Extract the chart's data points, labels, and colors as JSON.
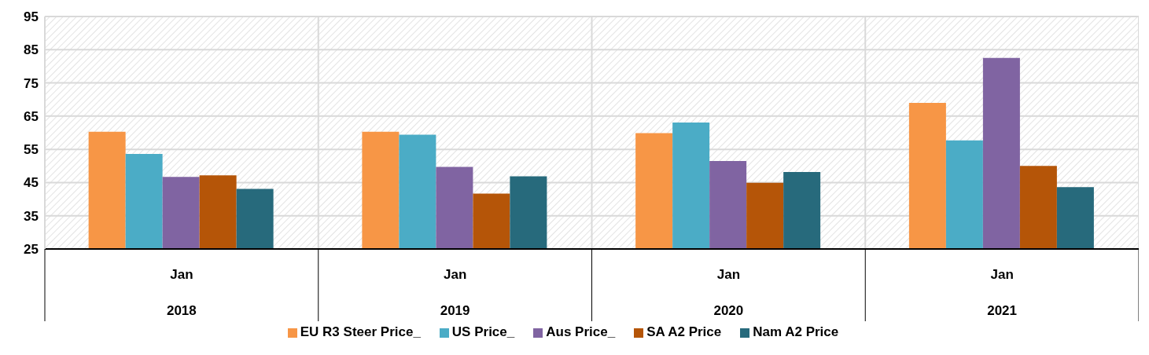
{
  "chart_data": {
    "type": "bar",
    "categories": [
      "Jan\n2018",
      "Jan\n2019",
      "Jan\n2020",
      "Jan\n2021"
    ],
    "series": [
      {
        "name": "EU R3 Steer Price_",
        "color": "#f79646",
        "values": [
          60.3,
          60.3,
          59.9,
          69.0
        ]
      },
      {
        "name": "US Price_",
        "color": "#4bacc6",
        "values": [
          53.6,
          59.4,
          63.1,
          57.7
        ]
      },
      {
        "name": "Aus Price_",
        "color": "#8064a2",
        "values": [
          46.7,
          49.7,
          51.5,
          82.5
        ]
      },
      {
        "name": "SA A2 Price",
        "color": "#b55508",
        "values": [
          47.2,
          41.7,
          44.9,
          50.0
        ]
      },
      {
        "name": "Nam A2 Price",
        "color": "#276a7c",
        "values": [
          43.1,
          46.9,
          48.2,
          43.6
        ]
      }
    ],
    "ylim": [
      25,
      95
    ],
    "yticks": [
      25,
      35,
      45,
      55,
      65,
      75,
      85,
      95
    ],
    "grid": true,
    "legend": "bottom"
  }
}
